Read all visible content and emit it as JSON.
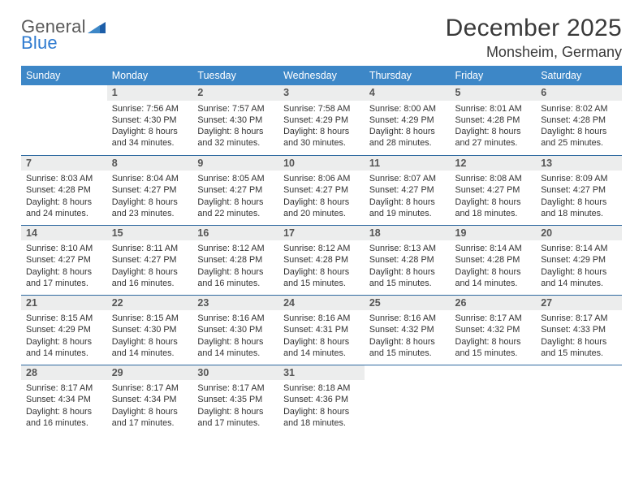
{
  "logo": {
    "text1": "General",
    "text2": "Blue"
  },
  "title": "December 2025",
  "location": "Monsheim, Germany",
  "colors": {
    "header_bg": "#3d87c7",
    "header_text": "#ffffff",
    "row_divider": "#2f6aa0",
    "daynum_bg": "#eceded",
    "logo_blue": "#2f7bd0"
  },
  "weekdays": [
    "Sunday",
    "Monday",
    "Tuesday",
    "Wednesday",
    "Thursday",
    "Friday",
    "Saturday"
  ],
  "weeks": [
    [
      {
        "n": "",
        "sr": "",
        "ss": "",
        "dl": ""
      },
      {
        "n": "1",
        "sr": "Sunrise: 7:56 AM",
        "ss": "Sunset: 4:30 PM",
        "dl": "Daylight: 8 hours and 34 minutes."
      },
      {
        "n": "2",
        "sr": "Sunrise: 7:57 AM",
        "ss": "Sunset: 4:30 PM",
        "dl": "Daylight: 8 hours and 32 minutes."
      },
      {
        "n": "3",
        "sr": "Sunrise: 7:58 AM",
        "ss": "Sunset: 4:29 PM",
        "dl": "Daylight: 8 hours and 30 minutes."
      },
      {
        "n": "4",
        "sr": "Sunrise: 8:00 AM",
        "ss": "Sunset: 4:29 PM",
        "dl": "Daylight: 8 hours and 28 minutes."
      },
      {
        "n": "5",
        "sr": "Sunrise: 8:01 AM",
        "ss": "Sunset: 4:28 PM",
        "dl": "Daylight: 8 hours and 27 minutes."
      },
      {
        "n": "6",
        "sr": "Sunrise: 8:02 AM",
        "ss": "Sunset: 4:28 PM",
        "dl": "Daylight: 8 hours and 25 minutes."
      }
    ],
    [
      {
        "n": "7",
        "sr": "Sunrise: 8:03 AM",
        "ss": "Sunset: 4:28 PM",
        "dl": "Daylight: 8 hours and 24 minutes."
      },
      {
        "n": "8",
        "sr": "Sunrise: 8:04 AM",
        "ss": "Sunset: 4:27 PM",
        "dl": "Daylight: 8 hours and 23 minutes."
      },
      {
        "n": "9",
        "sr": "Sunrise: 8:05 AM",
        "ss": "Sunset: 4:27 PM",
        "dl": "Daylight: 8 hours and 22 minutes."
      },
      {
        "n": "10",
        "sr": "Sunrise: 8:06 AM",
        "ss": "Sunset: 4:27 PM",
        "dl": "Daylight: 8 hours and 20 minutes."
      },
      {
        "n": "11",
        "sr": "Sunrise: 8:07 AM",
        "ss": "Sunset: 4:27 PM",
        "dl": "Daylight: 8 hours and 19 minutes."
      },
      {
        "n": "12",
        "sr": "Sunrise: 8:08 AM",
        "ss": "Sunset: 4:27 PM",
        "dl": "Daylight: 8 hours and 18 minutes."
      },
      {
        "n": "13",
        "sr": "Sunrise: 8:09 AM",
        "ss": "Sunset: 4:27 PM",
        "dl": "Daylight: 8 hours and 18 minutes."
      }
    ],
    [
      {
        "n": "14",
        "sr": "Sunrise: 8:10 AM",
        "ss": "Sunset: 4:27 PM",
        "dl": "Daylight: 8 hours and 17 minutes."
      },
      {
        "n": "15",
        "sr": "Sunrise: 8:11 AM",
        "ss": "Sunset: 4:27 PM",
        "dl": "Daylight: 8 hours and 16 minutes."
      },
      {
        "n": "16",
        "sr": "Sunrise: 8:12 AM",
        "ss": "Sunset: 4:28 PM",
        "dl": "Daylight: 8 hours and 16 minutes."
      },
      {
        "n": "17",
        "sr": "Sunrise: 8:12 AM",
        "ss": "Sunset: 4:28 PM",
        "dl": "Daylight: 8 hours and 15 minutes."
      },
      {
        "n": "18",
        "sr": "Sunrise: 8:13 AM",
        "ss": "Sunset: 4:28 PM",
        "dl": "Daylight: 8 hours and 15 minutes."
      },
      {
        "n": "19",
        "sr": "Sunrise: 8:14 AM",
        "ss": "Sunset: 4:28 PM",
        "dl": "Daylight: 8 hours and 14 minutes."
      },
      {
        "n": "20",
        "sr": "Sunrise: 8:14 AM",
        "ss": "Sunset: 4:29 PM",
        "dl": "Daylight: 8 hours and 14 minutes."
      }
    ],
    [
      {
        "n": "21",
        "sr": "Sunrise: 8:15 AM",
        "ss": "Sunset: 4:29 PM",
        "dl": "Daylight: 8 hours and 14 minutes."
      },
      {
        "n": "22",
        "sr": "Sunrise: 8:15 AM",
        "ss": "Sunset: 4:30 PM",
        "dl": "Daylight: 8 hours and 14 minutes."
      },
      {
        "n": "23",
        "sr": "Sunrise: 8:16 AM",
        "ss": "Sunset: 4:30 PM",
        "dl": "Daylight: 8 hours and 14 minutes."
      },
      {
        "n": "24",
        "sr": "Sunrise: 8:16 AM",
        "ss": "Sunset: 4:31 PM",
        "dl": "Daylight: 8 hours and 14 minutes."
      },
      {
        "n": "25",
        "sr": "Sunrise: 8:16 AM",
        "ss": "Sunset: 4:32 PM",
        "dl": "Daylight: 8 hours and 15 minutes."
      },
      {
        "n": "26",
        "sr": "Sunrise: 8:17 AM",
        "ss": "Sunset: 4:32 PM",
        "dl": "Daylight: 8 hours and 15 minutes."
      },
      {
        "n": "27",
        "sr": "Sunrise: 8:17 AM",
        "ss": "Sunset: 4:33 PM",
        "dl": "Daylight: 8 hours and 15 minutes."
      }
    ],
    [
      {
        "n": "28",
        "sr": "Sunrise: 8:17 AM",
        "ss": "Sunset: 4:34 PM",
        "dl": "Daylight: 8 hours and 16 minutes."
      },
      {
        "n": "29",
        "sr": "Sunrise: 8:17 AM",
        "ss": "Sunset: 4:34 PM",
        "dl": "Daylight: 8 hours and 17 minutes."
      },
      {
        "n": "30",
        "sr": "Sunrise: 8:17 AM",
        "ss": "Sunset: 4:35 PM",
        "dl": "Daylight: 8 hours and 17 minutes."
      },
      {
        "n": "31",
        "sr": "Sunrise: 8:18 AM",
        "ss": "Sunset: 4:36 PM",
        "dl": "Daylight: 8 hours and 18 minutes."
      },
      {
        "n": "",
        "sr": "",
        "ss": "",
        "dl": ""
      },
      {
        "n": "",
        "sr": "",
        "ss": "",
        "dl": ""
      },
      {
        "n": "",
        "sr": "",
        "ss": "",
        "dl": ""
      }
    ]
  ]
}
